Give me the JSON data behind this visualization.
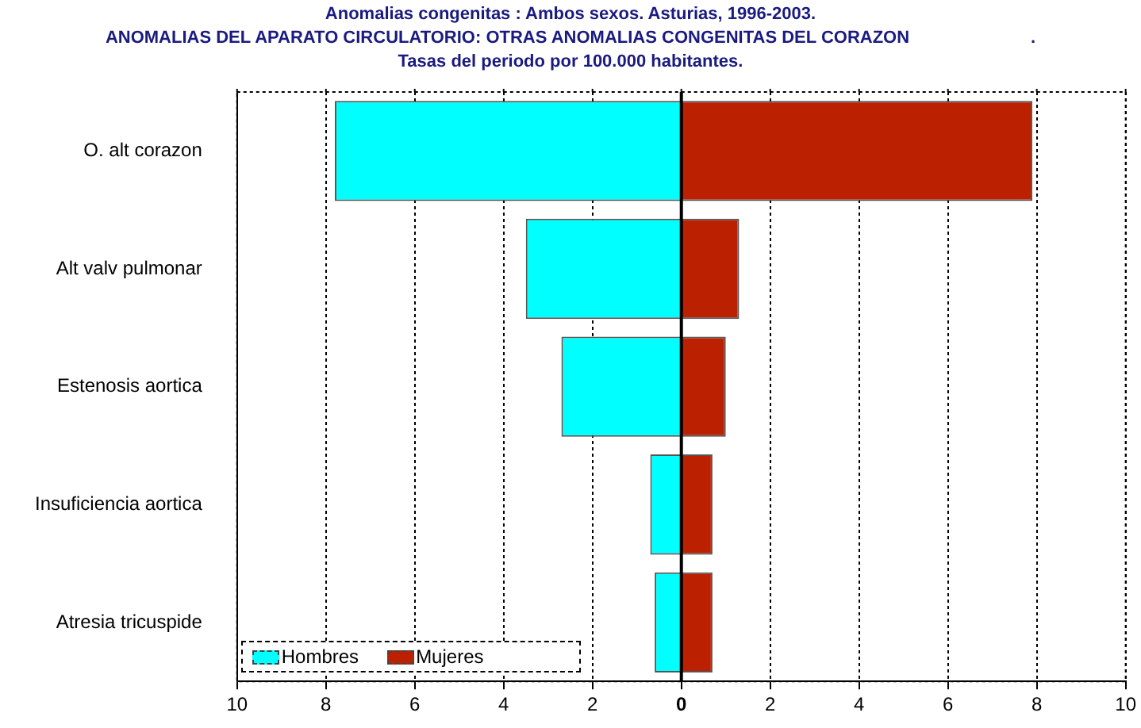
{
  "chart_data": {
    "type": "bar",
    "orientation": "horizontal",
    "stacked": true,
    "title": "Anomalias congenitas : Ambos sexos. Asturias, 1996-2003.",
    "subtitle": "ANOMALIAS DEL APARATO CIRCULATORIO: OTRAS ANOMALIAS CONGENITAS DEL CORAZON                         .\nTasas del periodo por 100.000 habitantes.",
    "categories": [
      "O. alt corazon",
      "Alt valv pulmonar",
      "Estenosis aortica",
      "Insuficiencia aortica",
      "Atresia tricuspide"
    ],
    "series": [
      {
        "name": "Hombres",
        "color": "#00ffff",
        "values": [
          -7.8,
          -3.5,
          -2.7,
          -0.7,
          -0.6
        ]
      },
      {
        "name": "Mujeres",
        "color": "#bb2000",
        "values": [
          7.9,
          1.3,
          1.0,
          0.7,
          0.7
        ]
      }
    ],
    "xlim": [
      -10,
      10
    ],
    "xticks": [
      {
        "value": -10,
        "label": "10"
      },
      {
        "value": -8,
        "label": "8"
      },
      {
        "value": -6,
        "label": "6"
      },
      {
        "value": -4,
        "label": "4"
      },
      {
        "value": -2,
        "label": "2"
      },
      0,
      2,
      4,
      6,
      8,
      10
    ],
    "grid": "x",
    "legend": "bottom left"
  }
}
